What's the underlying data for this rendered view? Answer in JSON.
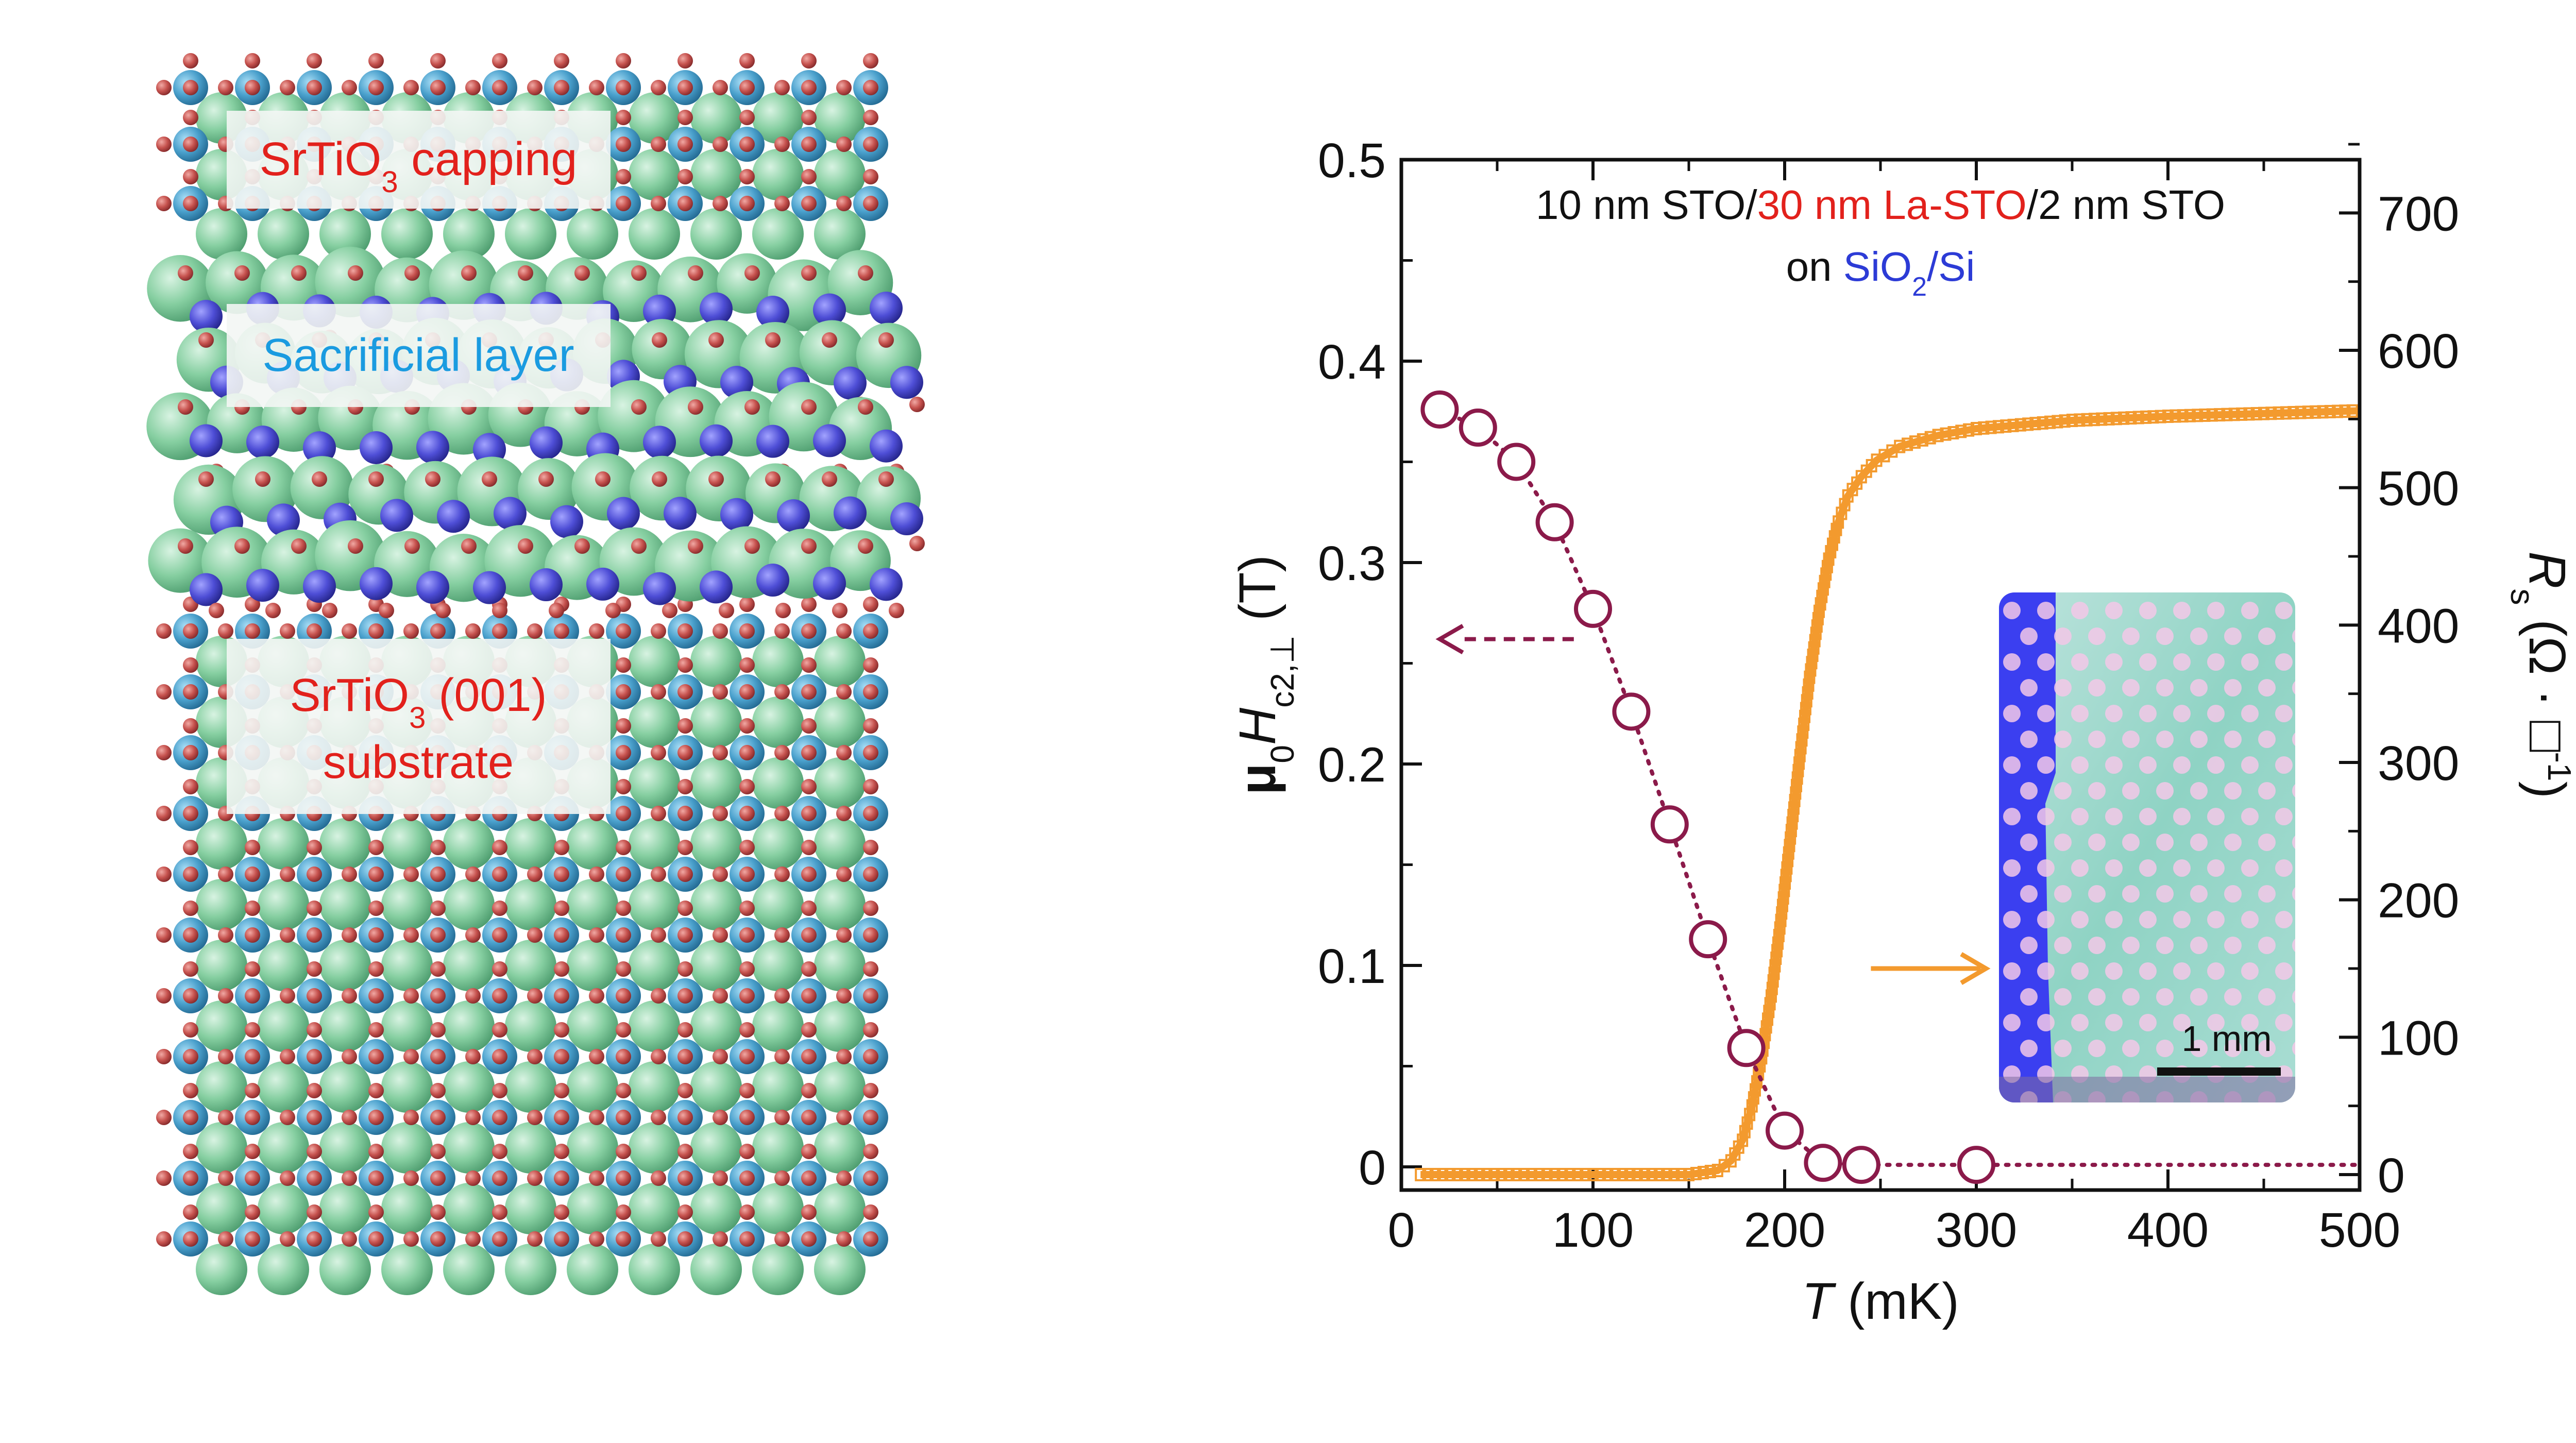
{
  "crystal_panel": {
    "labels": {
      "capping": {
        "compound": "SrTiO",
        "sub": "3",
        "suffix": " capping"
      },
      "sacrificial": "Sacrificial layer",
      "substrate_line1": {
        "compound": "SrTiO",
        "sub": "3",
        "suffix": " (001)"
      },
      "substrate_line2": "substrate"
    },
    "colors": {
      "label_red": "#e2211c",
      "label_blue": "#1a9be0",
      "sr_green": "#7ec99b",
      "ti_blue": "#4a9fcb",
      "o_red": "#c0504d",
      "la_purple": "#4b4bd0",
      "label_bg": "#f3f6f4"
    }
  },
  "chart_data": {
    "type": "scatter+line",
    "title": {
      "line1_parts": [
        {
          "text": "10 nm STO/",
          "color": "#111111"
        },
        {
          "text": "30 nm La-STO",
          "color": "#e2211c"
        },
        {
          "text": "/2 nm STO",
          "color": "#111111"
        }
      ],
      "line2_prefix": "on ",
      "line2_substrate": {
        "main": "SiO",
        "sub": "2",
        "suffix": "/Si",
        "color": "#2c3bd6"
      }
    },
    "xlabel": {
      "italic": "T",
      "unit": " (mK)"
    },
    "ylabel_left": {
      "mu": "μ",
      "mu_sub": "0",
      "H": "H",
      "H_sub": "c2,⊥",
      "unit": " (T)"
    },
    "ylabel_right": {
      "R": "R",
      "R_sub": "s",
      "unit": " (Ω · □",
      "unit_sup": "-1",
      "close": ")"
    },
    "xlim": [
      0,
      500
    ],
    "ylim_left": [
      0,
      0.5
    ],
    "ylim_right": [
      0,
      750
    ],
    "x_ticks": [
      "0",
      "100",
      "200",
      "300",
      "400",
      "500"
    ],
    "y_left_ticks": [
      "0",
      "0.1",
      "0.2",
      "0.3",
      "0.4",
      "0.5"
    ],
    "y_right_ticks": [
      "0",
      "100",
      "200",
      "300",
      "400",
      "500",
      "600",
      "700"
    ],
    "series": [
      {
        "name": "Hc2",
        "axis": "left",
        "color": "#8b1a4a",
        "marker": "open-circle",
        "line": "dotted",
        "x": [
          20,
          40,
          60,
          80,
          100,
          120,
          140,
          160,
          180,
          200,
          220,
          240,
          300
        ],
        "y": [
          0.376,
          0.367,
          0.35,
          0.32,
          0.277,
          0.226,
          0.17,
          0.113,
          0.059,
          0.018,
          0.002,
          0.001,
          0.001
        ]
      },
      {
        "name": "Rs",
        "axis": "right",
        "color": "#f39a2e",
        "marker": "open-square-dense",
        "x": [
          10,
          60,
          100,
          150,
          165,
          172,
          178,
          183,
          188,
          193,
          198,
          203,
          208,
          213,
          218,
          223,
          228,
          233,
          240,
          248,
          260,
          280,
          300,
          350,
          400,
          450,
          500
        ],
        "y": [
          0,
          0,
          0,
          0,
          3,
          10,
          25,
          50,
          85,
          130,
          185,
          245,
          305,
          362,
          410,
          448,
          475,
          494,
          508,
          520,
          530,
          538,
          543,
          549,
          552,
          554,
          556
        ]
      }
    ],
    "arrows": [
      {
        "name": "left-axis-arrow",
        "color": "#8b1a4a",
        "style": "dashed",
        "from": [
          90,
          0.262
        ],
        "to": [
          20,
          0.262
        ]
      },
      {
        "name": "right-axis-arrow",
        "color": "#f39a2e",
        "style": "solid",
        "from": [
          245,
          150
        ],
        "to": [
          305,
          150
        ]
      }
    ],
    "inset": {
      "scale_bar": "1 mm"
    }
  }
}
